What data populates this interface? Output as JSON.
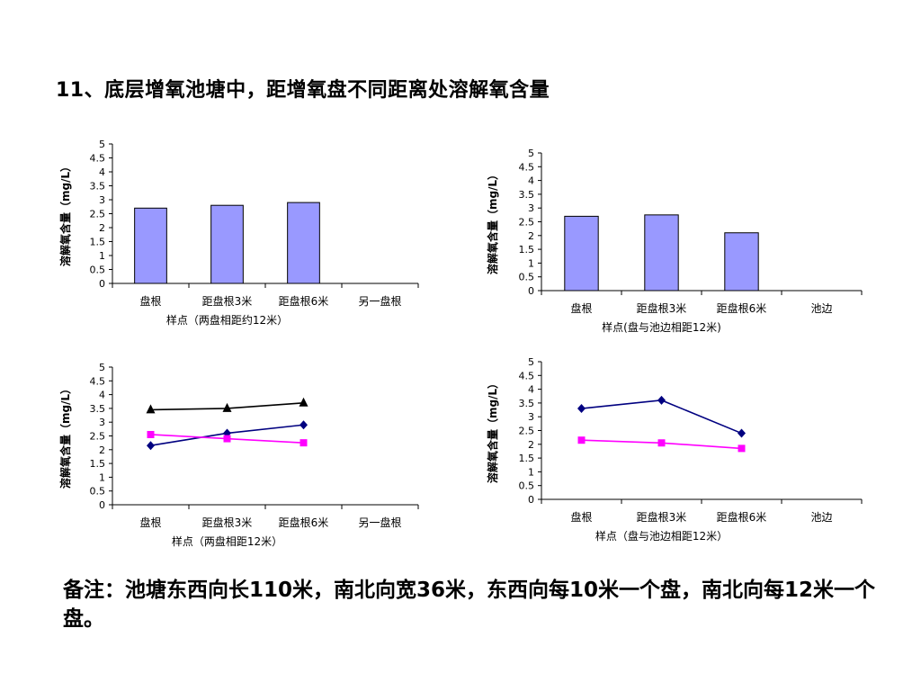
{
  "slide": {
    "title": "11、底层增氧池塘中，距增氧盘不同距离处溶解氧含量",
    "note": "备注：池塘东西向长110米，南北向宽36米，东西向每10米一个盘，南北向每12米一个盘。"
  },
  "colors": {
    "bar_fill": "#9999ff",
    "series_black": "#000000",
    "series_navy": "#000080",
    "series_magenta": "#ff00ff"
  },
  "chart_data": [
    {
      "type": "bar",
      "categories": [
        "盘根",
        "距盘根3米",
        "距盘根6米",
        "另一盘根"
      ],
      "values": [
        2.7,
        2.8,
        2.9,
        null
      ],
      "xlabel": "样点（两盘相距约12米）",
      "ylabel": "溶解氧含量（mg/L）",
      "yticks": [
        "0",
        "0.5",
        "1",
        "1.5",
        "2",
        "2.5",
        "3",
        "3.5",
        "4",
        "4.5",
        "5"
      ],
      "ylim": [
        0,
        5
      ],
      "grid": false,
      "legend": "none"
    },
    {
      "type": "bar",
      "categories": [
        "盘根",
        "距盘根3米",
        "距盘根6米",
        "池边"
      ],
      "values": [
        2.7,
        2.75,
        2.1,
        null
      ],
      "xlabel": "样点(盘与池边相距12米)",
      "ylabel": "溶解氧含量（mg/L）",
      "yticks": [
        "0",
        "0.5",
        "1",
        "1.5",
        "2",
        "2.5",
        "3",
        "3.5",
        "4",
        "4.5",
        "5"
      ],
      "ylim": [
        0,
        5
      ],
      "grid": false,
      "legend": "none"
    },
    {
      "type": "line",
      "categories": [
        "盘根",
        "距盘根3米",
        "距盘根6米",
        "另一盘根"
      ],
      "series": [
        {
          "marker": "triangle",
          "color": "#000000",
          "values": [
            3.45,
            3.5,
            3.7,
            null
          ]
        },
        {
          "marker": "diamond",
          "color": "#000080",
          "values": [
            2.15,
            2.6,
            2.9,
            null
          ]
        },
        {
          "marker": "square",
          "color": "#ff00ff",
          "values": [
            2.55,
            2.4,
            2.25,
            null
          ]
        }
      ],
      "xlabel": "样点（两盘相距12米）",
      "ylabel": "溶解氧含量（mg/L）",
      "yticks": [
        "0",
        "0.5",
        "1",
        "1.5",
        "2",
        "2.5",
        "3",
        "3.5",
        "4",
        "4.5",
        "5"
      ],
      "ylim": [
        0,
        5
      ],
      "grid": false,
      "legend": "none"
    },
    {
      "type": "line",
      "categories": [
        "盘根",
        "距盘根3米",
        "距盘根6米",
        "池边"
      ],
      "series": [
        {
          "marker": "diamond",
          "color": "#000080",
          "values": [
            3.3,
            3.6,
            2.4,
            null
          ]
        },
        {
          "marker": "square",
          "color": "#ff00ff",
          "values": [
            2.15,
            2.05,
            1.85,
            null
          ]
        }
      ],
      "xlabel": "样点（盘与池边相距12米）",
      "ylabel": "溶解氧含量（mg/L）",
      "yticks": [
        "0",
        "0.5",
        "1",
        "1.5",
        "2",
        "2.5",
        "3",
        "3.5",
        "4",
        "4.5",
        "5"
      ],
      "ylim": [
        0,
        5
      ],
      "grid": false,
      "legend": "none"
    }
  ]
}
